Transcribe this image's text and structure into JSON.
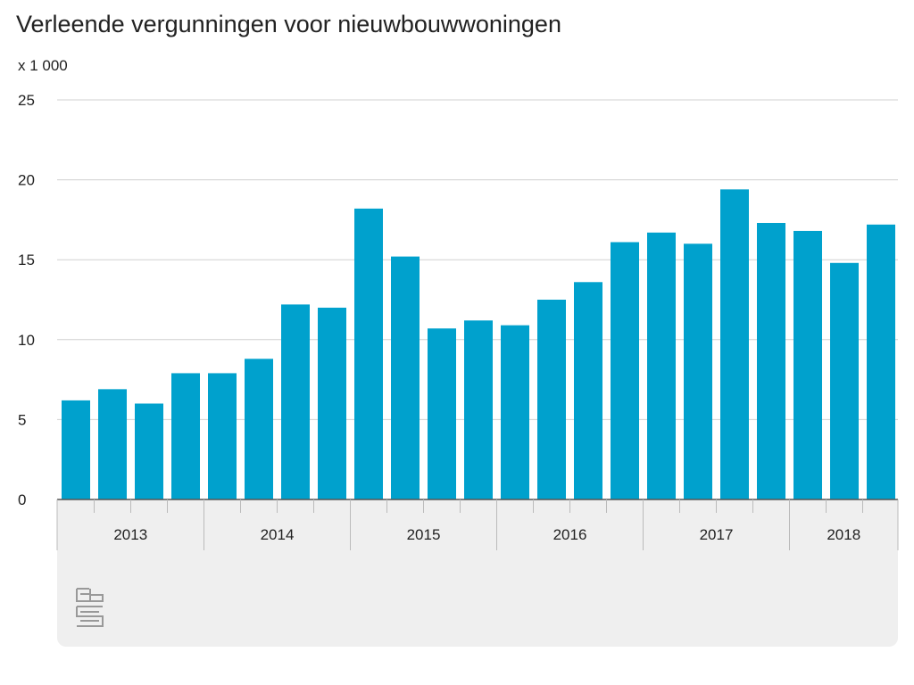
{
  "chart_data": {
    "type": "bar",
    "title": "Verleende vergunningen voor nieuwbouwwoningen",
    "ylabel": "x 1 000",
    "xlabel": "",
    "ylim": [
      0,
      25
    ],
    "yticks": [
      "0",
      "5",
      "10",
      "15",
      "20",
      "25"
    ],
    "grid": true,
    "years": [
      "2013",
      "2014",
      "2015",
      "2016",
      "2017",
      "2018"
    ],
    "quarters_per_year": [
      4,
      4,
      4,
      4,
      4,
      3
    ],
    "categories": [
      "2013 Q1",
      "2013 Q2",
      "2013 Q3",
      "2013 Q4",
      "2014 Q1",
      "2014 Q2",
      "2014 Q3",
      "2014 Q4",
      "2015 Q1",
      "2015 Q2",
      "2015 Q3",
      "2015 Q4",
      "2016 Q1",
      "2016 Q2",
      "2016 Q3",
      "2016 Q4",
      "2017 Q1",
      "2017 Q2",
      "2017 Q3",
      "2017 Q4",
      "2018 Q1",
      "2018 Q2",
      "2018 Q3"
    ],
    "values": [
      6.2,
      6.9,
      6.0,
      7.9,
      7.9,
      8.8,
      12.2,
      12.0,
      18.2,
      15.2,
      10.7,
      11.2,
      10.9,
      12.5,
      13.6,
      16.1,
      16.7,
      16.0,
      19.4,
      17.3,
      16.8,
      14.8,
      17.2
    ],
    "bar_color": "#00a1cd",
    "logo_text": "cbs"
  }
}
